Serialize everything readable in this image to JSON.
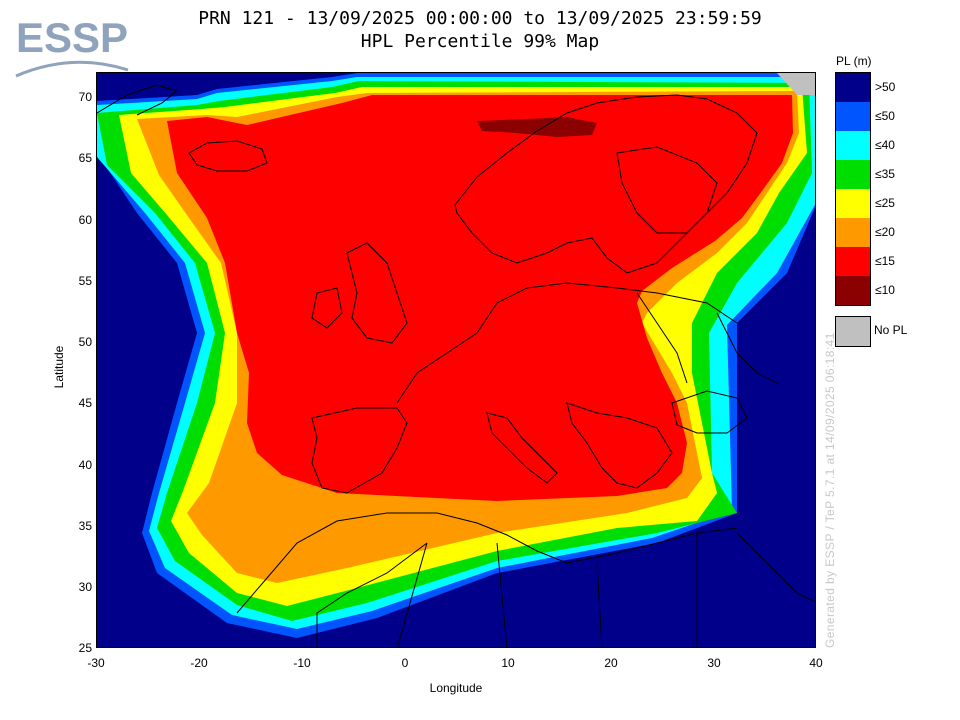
{
  "logo": {
    "text": "ESSP"
  },
  "header": {
    "title_line1": "PRN 121 - 13/09/2025 00:00:00 to 13/09/2025 23:59:59",
    "title_line2": "HPL Percentile 99% Map"
  },
  "axes": {
    "xlabel": "Longitude",
    "ylabel": "Latitude",
    "x_ticks": [
      "-30",
      "-20",
      "-10",
      "0",
      "10",
      "20",
      "30",
      "40"
    ],
    "y_ticks": [
      "70",
      "65",
      "60",
      "55",
      "50",
      "45",
      "40",
      "35",
      "30",
      "25"
    ],
    "x_range": [
      -30,
      40
    ],
    "y_range": [
      25,
      72
    ]
  },
  "legend": {
    "title": "PL (m)",
    "items": [
      {
        "label": ">50",
        "color": "#00008b"
      },
      {
        "label": "≤50",
        "color": "#0055ff"
      },
      {
        "label": "≤40",
        "color": "#00ffff"
      },
      {
        "label": "≤35",
        "color": "#00dd00"
      },
      {
        "label": "≤25",
        "color": "#ffff00"
      },
      {
        "label": "≤20",
        "color": "#ff9900"
      },
      {
        "label": "≤15",
        "color": "#ff0000"
      },
      {
        "label": "≤10",
        "color": "#8b0000"
      }
    ],
    "nopl": {
      "label": "No PL",
      "color": "#c0c0c0"
    }
  },
  "watermark": "Generated by ESSP / TeP 5.7.1 at 14/09/2025 06:18:41"
}
